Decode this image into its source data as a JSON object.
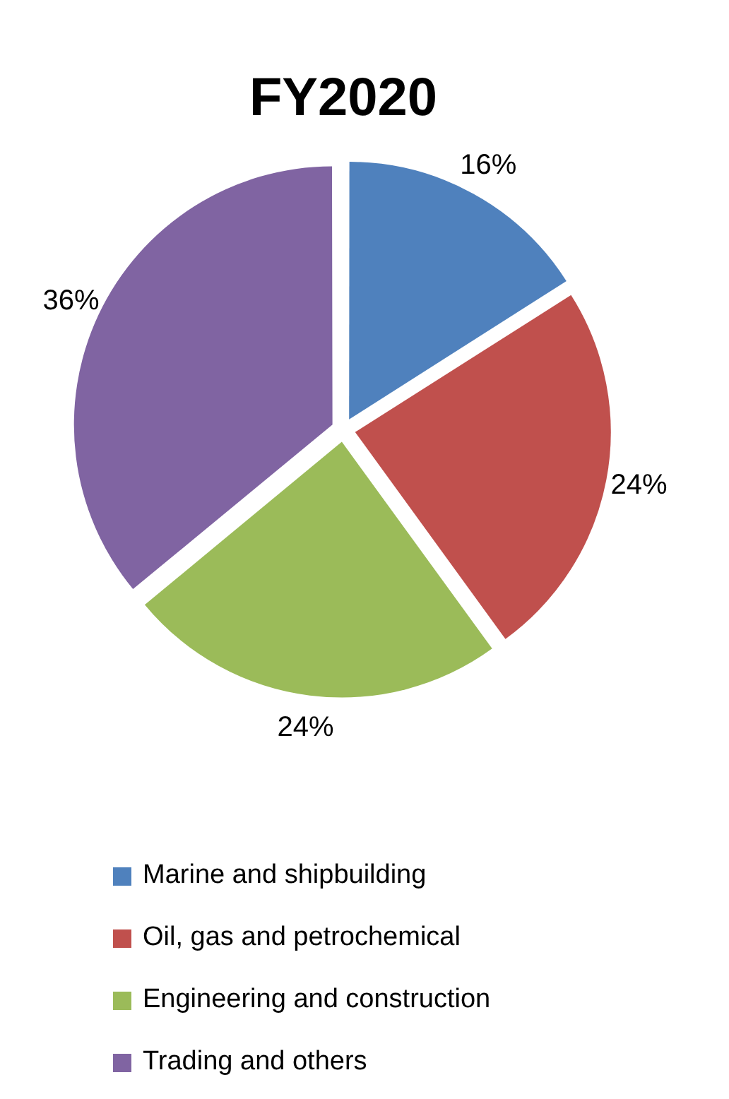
{
  "chart_data": {
    "type": "pie",
    "title": "FY2020",
    "categories": [
      "Marine and shipbuilding",
      "Oil, gas and petrochemical",
      "Engineering and construction",
      "Trading and others"
    ],
    "values": [
      16,
      24,
      24,
      36
    ],
    "colors": [
      "#4f81bd",
      "#c0504d",
      "#9bbb59",
      "#8064a2"
    ],
    "value_labels": [
      "16%",
      "24%",
      "24%",
      "36%"
    ],
    "legend": "bottom"
  }
}
